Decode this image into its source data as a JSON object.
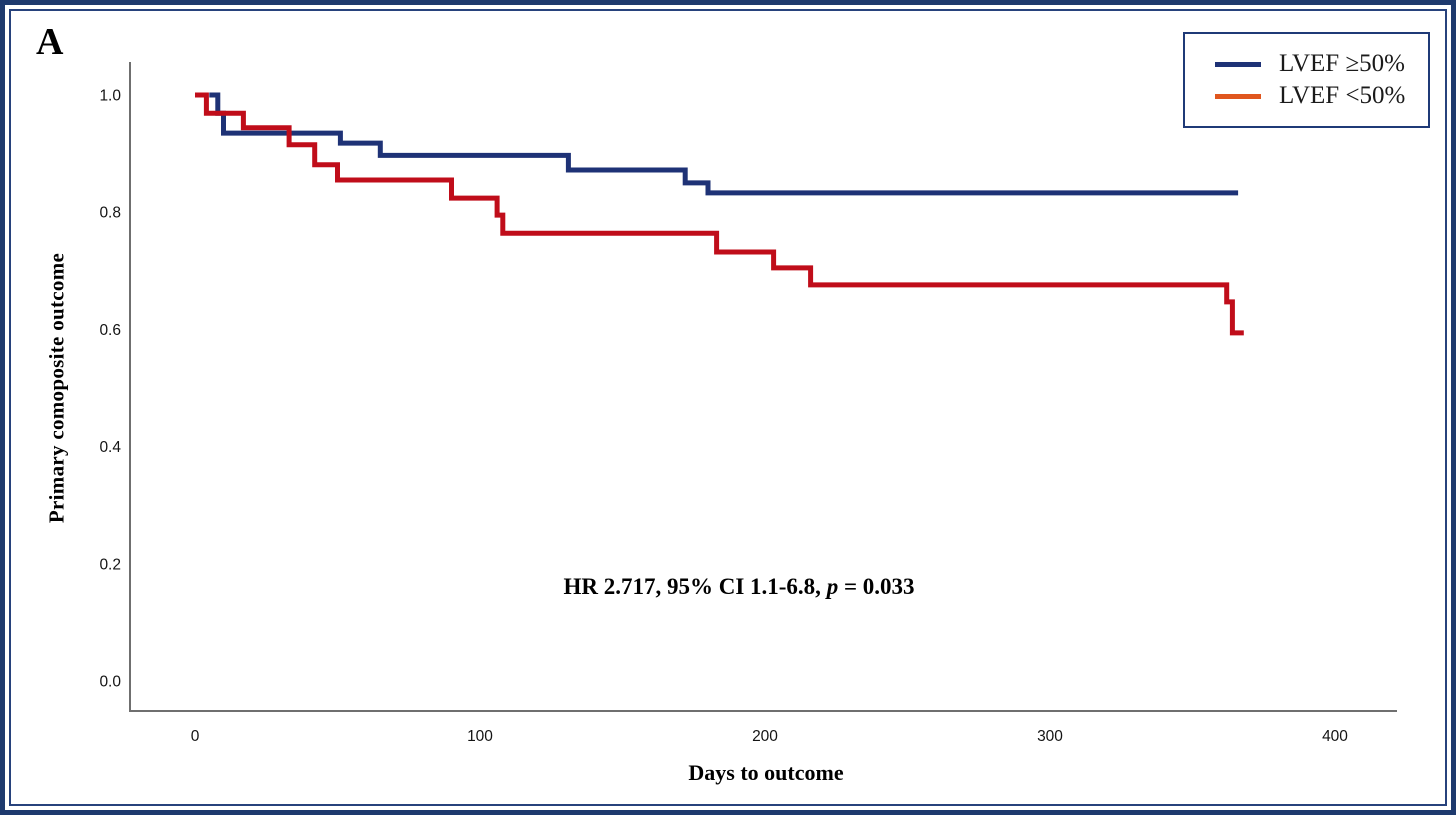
{
  "panel_label": "A",
  "colors": {
    "curve_navy": "#1e3276",
    "curve_red": "#c00d1a",
    "legend_navy": "#1e3276",
    "legend_orange": "#e0561e",
    "legend_border": "#1f3a77",
    "frame_border": "#1e3a6e",
    "axis_line": "#6f6f6f"
  },
  "legend": {
    "position": "top-right",
    "items": [
      {
        "label": "LVEF ≥50%",
        "color": "#1e3276"
      },
      {
        "label": "LVEF <50%",
        "color": "#e0561e"
      }
    ]
  },
  "annotation": {
    "hr_text": "HR 2.717, 95% CI 1.1-6.8, ",
    "p_symbol": "p",
    "p_value": " = 0.033"
  },
  "chart_data": {
    "type": "line",
    "subtype": "kaplan-meier-step",
    "title": "",
    "xlabel": "Days to outcome",
    "ylabel": "Primary comoposite outcome",
    "xlim": [
      -23,
      422
    ],
    "ylim": [
      -0.05,
      1.055
    ],
    "grid": false,
    "legend_position": "top-right",
    "x_ticks": [
      0,
      100,
      200,
      300,
      400
    ],
    "x_tick_labels": [
      "0",
      "100",
      "200",
      "300",
      "400"
    ],
    "y_ticks": [
      1.0,
      0.8,
      0.6,
      0.4,
      0.2,
      0.0
    ],
    "y_tick_labels": [
      "1.0",
      "0.8",
      "0.6",
      "0.4",
      "0.2",
      "0.0"
    ],
    "annotation_text": "HR 2.717, 95% CI 1.1-6.8, p = 0.033",
    "series": [
      {
        "name": "LVEF ≥50%",
        "color": "#1e3276",
        "steps": [
          [
            5,
            1.0
          ],
          [
            8,
            0.969
          ],
          [
            10,
            0.935
          ],
          [
            51,
            0.918
          ],
          [
            65,
            0.897
          ],
          [
            131,
            0.872
          ],
          [
            172,
            0.85
          ],
          [
            180,
            0.833
          ],
          [
            366,
            0.833
          ]
        ]
      },
      {
        "name": "LVEF <50%",
        "color": "#c00d1a",
        "steps": [
          [
            0,
            1.0
          ],
          [
            4,
            0.969
          ],
          [
            17,
            0.944
          ],
          [
            33,
            0.915
          ],
          [
            42,
            0.881
          ],
          [
            50,
            0.855
          ],
          [
            90,
            0.824
          ],
          [
            106,
            0.795
          ],
          [
            108,
            0.764
          ],
          [
            183,
            0.732
          ],
          [
            203,
            0.705
          ],
          [
            216,
            0.676
          ],
          [
            362,
            0.647
          ],
          [
            364,
            0.594
          ],
          [
            368,
            0.594
          ]
        ]
      }
    ]
  }
}
